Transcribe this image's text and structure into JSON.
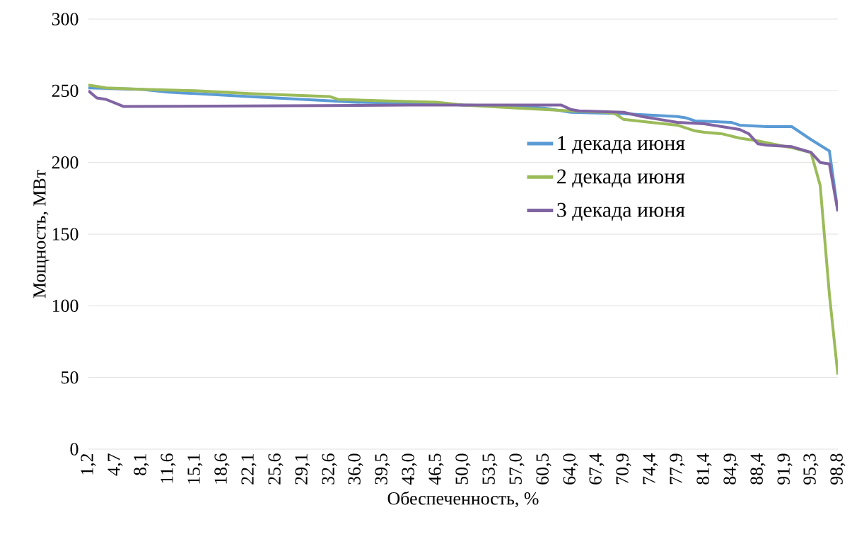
{
  "chart_data": {
    "type": "line",
    "xlabel": "Обеспеченность, %",
    "ylabel": "Мощность, МВт",
    "xlim": [
      1.2,
      98.8
    ],
    "ylim": [
      0,
      300
    ],
    "yticks": [
      0,
      50,
      100,
      150,
      200,
      250,
      300
    ],
    "xticks": [
      {
        "value": 1.2,
        "label": "1,2"
      },
      {
        "value": 4.7,
        "label": "4,7"
      },
      {
        "value": 8.1,
        "label": "8,1"
      },
      {
        "value": 11.6,
        "label": "11,6"
      },
      {
        "value": 15.1,
        "label": "15,1"
      },
      {
        "value": 18.6,
        "label": "18,6"
      },
      {
        "value": 22.1,
        "label": "22,1"
      },
      {
        "value": 25.6,
        "label": "25,6"
      },
      {
        "value": 29.1,
        "label": "29,1"
      },
      {
        "value": 32.6,
        "label": "32,6"
      },
      {
        "value": 36.0,
        "label": "36,0"
      },
      {
        "value": 39.5,
        "label": "39,5"
      },
      {
        "value": 43.0,
        "label": "43,0"
      },
      {
        "value": 46.5,
        "label": "46,5"
      },
      {
        "value": 50.0,
        "label": "50,0"
      },
      {
        "value": 53.5,
        "label": "53,5"
      },
      {
        "value": 57.0,
        "label": "57,0"
      },
      {
        "value": 60.5,
        "label": "60,5"
      },
      {
        "value": 64.0,
        "label": "64,0"
      },
      {
        "value": 67.4,
        "label": "67,4"
      },
      {
        "value": 70.9,
        "label": "70,9"
      },
      {
        "value": 74.4,
        "label": "74,4"
      },
      {
        "value": 77.9,
        "label": "77,9"
      },
      {
        "value": 81.4,
        "label": "81,4"
      },
      {
        "value": 84.9,
        "label": "84,9"
      },
      {
        "value": 88.4,
        "label": "88,4"
      },
      {
        "value": 91.9,
        "label": "91,9"
      },
      {
        "value": 95.3,
        "label": "95,3"
      },
      {
        "value": 98.8,
        "label": "98,8"
      }
    ],
    "grid": "y",
    "legend": "right",
    "marker": "none",
    "line_style": "solid",
    "series": [
      {
        "name": "1 декада июня",
        "color": "#5b9bd5",
        "x": [
          1.2,
          8.1,
          11.6,
          15.1,
          22.1,
          29.1,
          32.6,
          36.0,
          46.5,
          50.0,
          57.0,
          60.5,
          64.0,
          70.9,
          74.4,
          77.9,
          79.1,
          80.2,
          84.9,
          86.0,
          89.5,
          92.8,
          95.3,
          97.7,
          98.8
        ],
        "values": [
          252,
          251,
          249,
          248,
          246,
          244,
          243,
          242,
          241,
          240,
          239,
          238,
          235,
          234,
          233,
          232,
          231,
          229,
          228,
          226,
          225,
          225,
          216,
          208,
          166
        ]
      },
      {
        "name": "2 декада июня",
        "color": "#9bbb59",
        "x": [
          1.2,
          3.5,
          8.1,
          15.1,
          18.6,
          22.1,
          32.6,
          33.7,
          39.5,
          46.5,
          50.0,
          57.0,
          60.5,
          64.0,
          68.6,
          69.8,
          70.9,
          74.4,
          77.9,
          80.2,
          81.4,
          83.7,
          86.0,
          88.4,
          93.0,
          95.3,
          96.5,
          97.7,
          98.8
        ],
        "values": [
          254,
          252,
          251,
          250,
          249,
          248,
          246,
          244,
          243,
          242,
          240,
          238,
          237,
          236,
          235,
          234,
          230,
          228,
          226,
          222,
          221,
          220,
          217,
          215,
          210,
          207,
          184,
          108,
          52
        ]
      },
      {
        "name": "3 декада июня",
        "color": "#8064a2",
        "x": [
          1.2,
          2.3,
          3.5,
          5.8,
          43.0,
          62.8,
          64.0,
          65.1,
          70.9,
          73.3,
          75.6,
          77.9,
          81.4,
          83.7,
          86.0,
          87.2,
          88.4,
          89.5,
          92.8,
          95.3,
          96.5,
          97.7,
          98.8
        ],
        "values": [
          250,
          245,
          244,
          239,
          240,
          240,
          237,
          236,
          235,
          232,
          230,
          228,
          227,
          225,
          223,
          220,
          213,
          212,
          211,
          207,
          200,
          199,
          166
        ]
      }
    ]
  }
}
